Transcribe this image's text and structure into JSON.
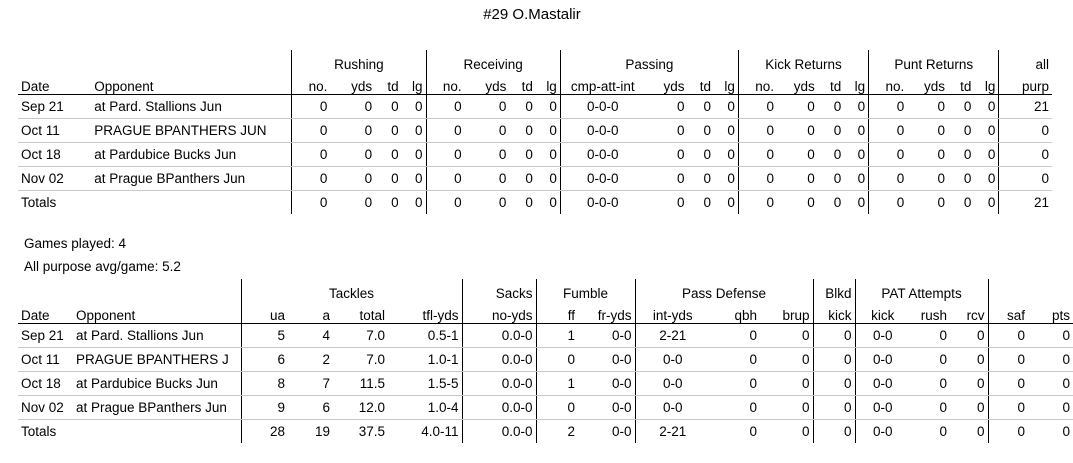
{
  "title": "#29 O.Mastalir",
  "offense": {
    "groups": [
      "Rushing",
      "Receiving",
      "Passing",
      "Kick Returns",
      "Punt Returns",
      "all"
    ],
    "headers": [
      "Date",
      "Opponent",
      "no.",
      "yds",
      "td",
      "lg",
      "no.",
      "yds",
      "td",
      "lg",
      "cmp-att-int",
      "yds",
      "td",
      "lg",
      "no.",
      "yds",
      "td",
      "lg",
      "no.",
      "yds",
      "td",
      "lg",
      "purp"
    ],
    "rows": [
      [
        "Sep 21",
        "at Pard. Stallions Jun",
        "0",
        "0",
        "0",
        "0",
        "0",
        "0",
        "0",
        "0",
        "0-0-0",
        "0",
        "0",
        "0",
        "0",
        "0",
        "0",
        "0",
        "0",
        "0",
        "0",
        "0",
        "21"
      ],
      [
        "Oct 11",
        "PRAGUE BPANTHERS JUN",
        "0",
        "0",
        "0",
        "0",
        "0",
        "0",
        "0",
        "0",
        "0-0-0",
        "0",
        "0",
        "0",
        "0",
        "0",
        "0",
        "0",
        "0",
        "0",
        "0",
        "0",
        "0"
      ],
      [
        "Oct 18",
        "at Pardubice Bucks Jun",
        "0",
        "0",
        "0",
        "0",
        "0",
        "0",
        "0",
        "0",
        "0-0-0",
        "0",
        "0",
        "0",
        "0",
        "0",
        "0",
        "0",
        "0",
        "0",
        "0",
        "0",
        "0"
      ],
      [
        "Nov 02",
        "at Prague BPanthers Jun",
        "0",
        "0",
        "0",
        "0",
        "0",
        "0",
        "0",
        "0",
        "0-0-0",
        "0",
        "0",
        "0",
        "0",
        "0",
        "0",
        "0",
        "0",
        "0",
        "0",
        "0",
        "0"
      ]
    ],
    "totals": [
      "Totals",
      "",
      "0",
      "0",
      "0",
      "0",
      "0",
      "0",
      "0",
      "0",
      "0-0-0",
      "0",
      "0",
      "0",
      "0",
      "0",
      "0",
      "0",
      "0",
      "0",
      "0",
      "0",
      "21"
    ]
  },
  "summary": {
    "games_played": "Games played: 4",
    "all_purpose_avg": "All purpose avg/game: 5.2"
  },
  "defense": {
    "groups": [
      "Tackles",
      "Sacks",
      "Fumble",
      "Pass Defense",
      "Blkd",
      "PAT Attempts"
    ],
    "headers": [
      "Date",
      "Opponent",
      "ua",
      "a",
      "total",
      "tfl-yds",
      "no-yds",
      "ff",
      "fr-yds",
      "int-yds",
      "qbh",
      "brup",
      "kick",
      "kick",
      "rush",
      "rcv",
      "saf",
      "pts"
    ],
    "rows": [
      [
        "Sep 21",
        "at Pard. Stallions Jun",
        "5",
        "4",
        "7.0",
        "0.5-1",
        "0.0-0",
        "1",
        "0-0",
        "2-21",
        "0",
        "0",
        "0",
        "0-0",
        "0",
        "0",
        "0",
        "0"
      ],
      [
        "Oct 11",
        "PRAGUE BPANTHERS J",
        "6",
        "2",
        "7.0",
        "1.0-1",
        "0.0-0",
        "0",
        "0-0",
        "0-0",
        "0",
        "0",
        "0",
        "0-0",
        "0",
        "0",
        "0",
        "0"
      ],
      [
        "Oct 18",
        "at Pardubice Bucks Jun",
        "8",
        "7",
        "11.5",
        "1.5-5",
        "0.0-0",
        "1",
        "0-0",
        "0-0",
        "0",
        "0",
        "0",
        "0-0",
        "0",
        "0",
        "0",
        "0"
      ],
      [
        "Nov 02",
        "at Prague BPanthers Jun",
        "9",
        "6",
        "12.0",
        "1.0-4",
        "0.0-0",
        "0",
        "0-0",
        "0-0",
        "0",
        "0",
        "0",
        "0-0",
        "0",
        "0",
        "0",
        "0"
      ]
    ],
    "totals": [
      "Totals",
      "",
      "28",
      "19",
      "37.5",
      "4.0-11",
      "0.0-0",
      "2",
      "0-0",
      "2-21",
      "0",
      "0",
      "0",
      "0-0",
      "0",
      "0",
      "0",
      "0"
    ]
  }
}
